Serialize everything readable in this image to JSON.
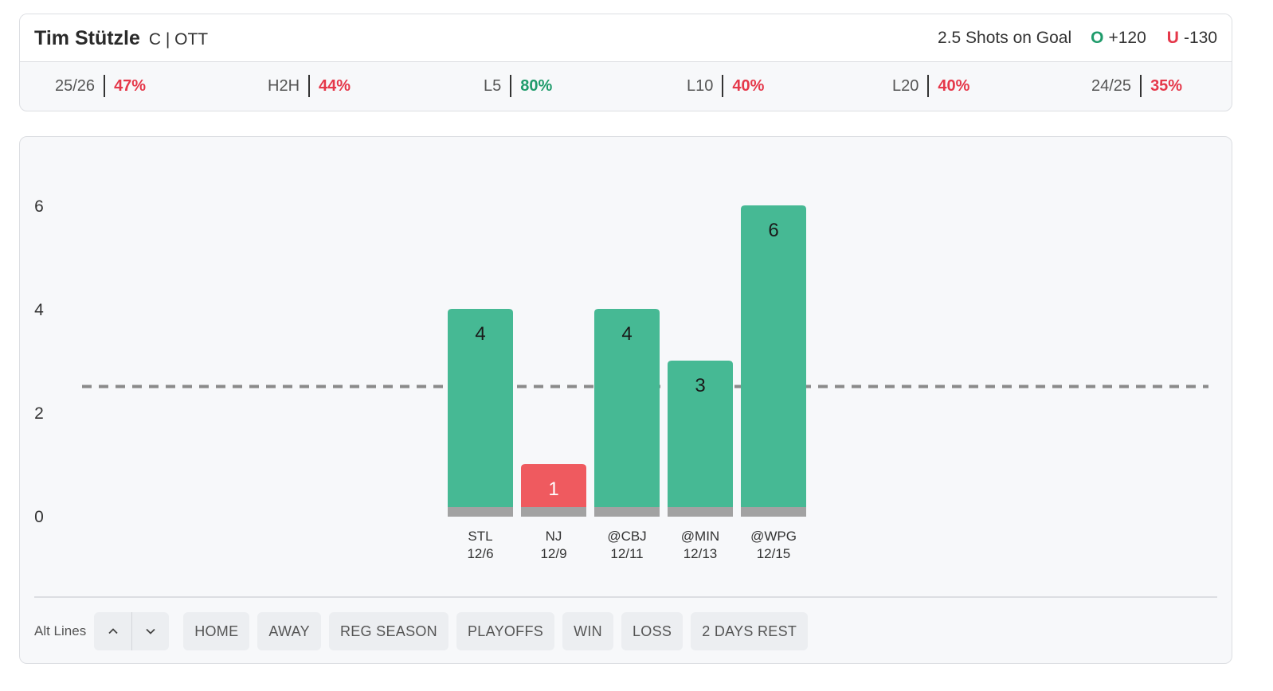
{
  "header": {
    "player_name": "Tim Stützle",
    "position_team": "C | OTT",
    "prop_line": "2.5 Shots on Goal",
    "over_label": "O",
    "over_odds": "+120",
    "under_label": "U",
    "under_odds": "-130"
  },
  "stats": [
    {
      "label": "25/26",
      "value": "47%",
      "color": "red"
    },
    {
      "label": "H2H",
      "value": "44%",
      "color": "red"
    },
    {
      "label": "L5",
      "value": "80%",
      "color": "green"
    },
    {
      "label": "L10",
      "value": "40%",
      "color": "red"
    },
    {
      "label": "L20",
      "value": "40%",
      "color": "red"
    },
    {
      "label": "24/25",
      "value": "35%",
      "color": "red"
    }
  ],
  "colors": {
    "over": "#46b994",
    "under": "#ef5a5f",
    "base": "#a2a2a2",
    "line": "#8a8a8a"
  },
  "chart_data": {
    "type": "bar",
    "title": "",
    "xlabel": "",
    "ylabel": "",
    "ylim": [
      0,
      6
    ],
    "yticks": [
      "0",
      "2",
      "4",
      "6"
    ],
    "line_value": 2.5,
    "categories": [
      {
        "opponent": "STL",
        "date": "12/6"
      },
      {
        "opponent": "NJ",
        "date": "12/9"
      },
      {
        "opponent": "@CBJ",
        "date": "12/11"
      },
      {
        "opponent": "@MIN",
        "date": "12/13"
      },
      {
        "opponent": "@WPG",
        "date": "12/15"
      }
    ],
    "values": [
      4,
      1,
      4,
      3,
      6
    ]
  },
  "toolbar": {
    "alt_lines_label": "Alt Lines",
    "filters": [
      "HOME",
      "AWAY",
      "REG SEASON",
      "PLAYOFFS",
      "WIN",
      "LOSS",
      "2 DAYS REST"
    ]
  }
}
